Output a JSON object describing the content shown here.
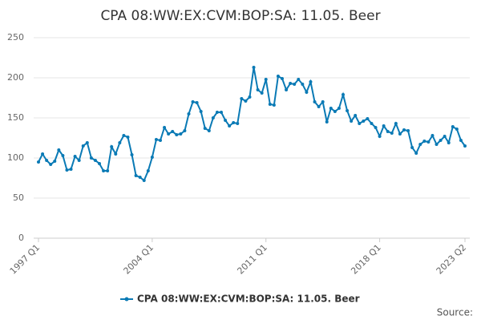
{
  "chart_data": {
    "type": "line",
    "title": "CPA 08:WW:EX:CVM:BOP:SA: 11.05. Beer",
    "source_label": "Source:",
    "categories": [
      "1997 Q1",
      null,
      null,
      null,
      null,
      null,
      null,
      null,
      null,
      null,
      null,
      null,
      null,
      null,
      null,
      null,
      null,
      null,
      null,
      null,
      null,
      null,
      null,
      null,
      null,
      null,
      null,
      null,
      "2004 Q1",
      null,
      null,
      null,
      null,
      null,
      null,
      null,
      null,
      null,
      null,
      null,
      null,
      null,
      null,
      null,
      null,
      null,
      null,
      null,
      null,
      null,
      null,
      null,
      null,
      null,
      null,
      null,
      "2011 Q1",
      null,
      null,
      null,
      null,
      null,
      null,
      null,
      null,
      null,
      null,
      null,
      null,
      null,
      null,
      null,
      null,
      null,
      null,
      null,
      null,
      null,
      null,
      null,
      null,
      null,
      null,
      null,
      "2018 Q1",
      null,
      null,
      null,
      null,
      null,
      null,
      null,
      null,
      null,
      null,
      null,
      null,
      null,
      null,
      null,
      null,
      null,
      null,
      null,
      null,
      "2023 Q2"
    ],
    "series": [
      {
        "name": "CPA 08:WW:EX:CVM:BOP:SA: 11.05. Beer",
        "color": "#0a7ab5",
        "values": [
          95,
          105,
          97,
          92,
          96,
          110,
          103,
          85,
          86,
          102,
          97,
          115,
          119,
          100,
          97,
          93,
          84,
          84,
          114,
          105,
          119,
          128,
          126,
          104,
          78,
          76,
          72,
          84,
          101,
          123,
          122,
          138,
          130,
          133,
          129,
          130,
          134,
          155,
          170,
          169,
          158,
          137,
          134,
          150,
          157,
          157,
          147,
          140,
          144,
          143,
          174,
          171,
          176,
          213,
          185,
          181,
          198,
          167,
          166,
          202,
          199,
          185,
          193,
          192,
          198,
          192,
          182,
          195,
          170,
          164,
          170,
          145,
          162,
          158,
          162,
          179,
          159,
          146,
          153,
          143,
          146,
          149,
          143,
          138,
          127,
          140,
          133,
          131,
          143,
          130,
          135,
          134,
          113,
          106,
          117,
          121,
          120,
          128,
          117,
          122,
          127,
          119,
          139,
          136,
          122,
          115
        ]
      }
    ],
    "ylim": [
      0,
      250
    ],
    "yticks": [
      0,
      50,
      100,
      150,
      200,
      250
    ],
    "grid": true
  }
}
